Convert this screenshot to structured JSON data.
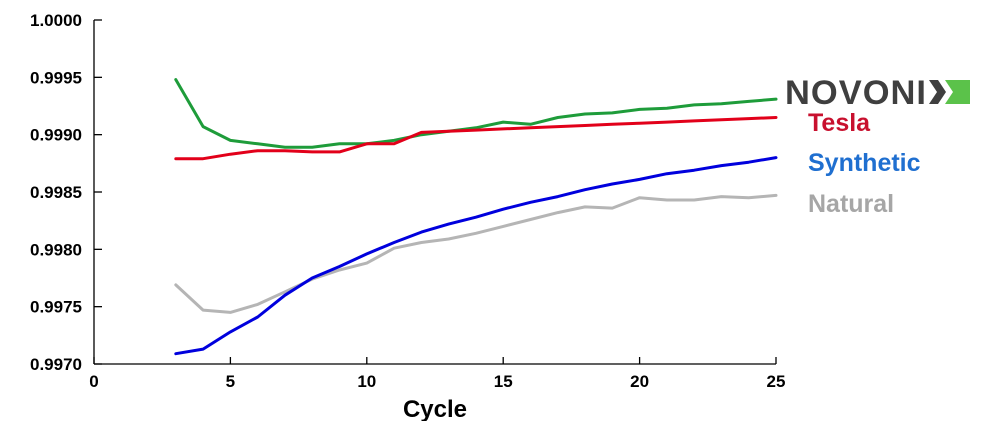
{
  "chart_data": {
    "type": "line",
    "title": "",
    "xlabel": "Cycle",
    "ylabel": "",
    "xlim": [
      0,
      25
    ],
    "ylim": [
      0.997,
      1.0
    ],
    "xticks": [
      "0",
      "5",
      "10",
      "15",
      "20",
      "25"
    ],
    "xtick_values": [
      0,
      5,
      10,
      15,
      20,
      25
    ],
    "yticks": [
      "1.0000",
      "0.9995",
      "0.9990",
      "0.9985",
      "0.9980",
      "0.9975",
      "0.9970"
    ],
    "ytick_values": [
      1.0,
      0.9995,
      0.999,
      0.9985,
      0.998,
      0.9975,
      0.997
    ],
    "grid": false,
    "legend_position": "right",
    "logo": "NOVONIX",
    "series": [
      {
        "name": "Tesla",
        "color": "#e2001a",
        "x": [
          3,
          4,
          5,
          6,
          7,
          8,
          9,
          10,
          11,
          12,
          13,
          14,
          15,
          16,
          17,
          18,
          19,
          20,
          21,
          22,
          23,
          24,
          25
        ],
        "values": [
          0.99879,
          0.99879,
          0.99883,
          0.99886,
          0.99886,
          0.99885,
          0.99885,
          0.99892,
          0.99892,
          0.99902,
          0.99903,
          0.99904,
          0.99905,
          0.99906,
          0.99907,
          0.99908,
          0.99909,
          0.9991,
          0.99911,
          0.99912,
          0.99913,
          0.99914,
          0.99915
        ]
      },
      {
        "name": "Synthetic",
        "color": "#0000dd",
        "x": [
          3,
          4,
          5,
          6,
          7,
          8,
          9,
          10,
          11,
          12,
          13,
          14,
          15,
          16,
          17,
          18,
          19,
          20,
          21,
          22,
          23,
          24,
          25
        ],
        "values": [
          0.99709,
          0.99713,
          0.99728,
          0.99741,
          0.9976,
          0.99775,
          0.99785,
          0.99796,
          0.99806,
          0.99815,
          0.99822,
          0.99828,
          0.99835,
          0.99841,
          0.99846,
          0.99852,
          0.99857,
          0.99861,
          0.99866,
          0.99869,
          0.99873,
          0.99876,
          0.9988
        ]
      },
      {
        "name": "Natural",
        "color": "#b5b5b5",
        "x": [
          3,
          4,
          5,
          6,
          7,
          8,
          9,
          10,
          11,
          12,
          13,
          14,
          15,
          16,
          17,
          18,
          19,
          20,
          21,
          22,
          23,
          24,
          25
        ],
        "values": [
          0.99769,
          0.99747,
          0.99745,
          0.99752,
          0.99763,
          0.99774,
          0.99782,
          0.99788,
          0.99801,
          0.99806,
          0.99809,
          0.99814,
          0.9982,
          0.99826,
          0.99832,
          0.99837,
          0.99836,
          0.99845,
          0.99843,
          0.99843,
          0.99846,
          0.99845,
          0.99847
        ]
      },
      {
        "color": "#1e9c3a",
        "x": [
          3,
          4,
          5,
          6,
          7,
          8,
          9,
          10,
          11,
          12,
          13,
          14,
          15,
          16,
          17,
          18,
          19,
          20,
          21,
          22,
          23,
          24,
          25
        ],
        "values": [
          0.99948,
          0.99907,
          0.99895,
          0.99892,
          0.99889,
          0.99889,
          0.99892,
          0.99892,
          0.99895,
          0.999,
          0.99903,
          0.99906,
          0.99911,
          0.99909,
          0.99915,
          0.99918,
          0.99919,
          0.99922,
          0.99923,
          0.99926,
          0.99927,
          0.99929,
          0.99931
        ]
      }
    ]
  },
  "legend_colors": {
    "Tesla": "#c8102e",
    "Synthetic": "#1f6fd0",
    "Natural": "#a6a6a6"
  },
  "logo_accent_color": "#5bc24a"
}
